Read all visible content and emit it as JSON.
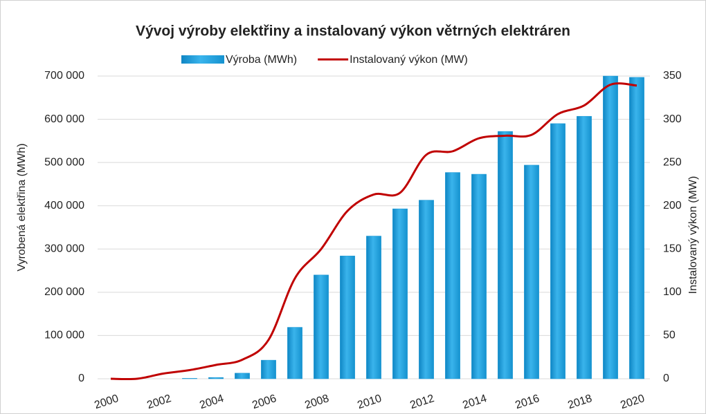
{
  "chart_data": {
    "type": "bar",
    "title": "Vývoj výroby elektřiny a instalovaný výkon větrných elektráren",
    "y_label": "Vyrobená elektřina (MWh)",
    "y2_label": "Instalovaný výkon (MW)",
    "categories": [
      "2000",
      null,
      "2002",
      null,
      "2004",
      null,
      "2006",
      null,
      "2008",
      null,
      "2010",
      null,
      "2012",
      null,
      "2014",
      null,
      "2016",
      null,
      "2018",
      null,
      "2020"
    ],
    "series": [
      {
        "name": "Výroba (MWh)",
        "type": "bar",
        "color": "#1e9bd7",
        "values": [
          0,
          0,
          0,
          1000,
          3000,
          13000,
          43000,
          119000,
          240000,
          284000,
          330000,
          393000,
          413000,
          477000,
          473000,
          572000,
          494000,
          590000,
          607000,
          700000,
          697000
        ]
      },
      {
        "name": "Instalovaný výkon (MW)",
        "type": "line",
        "axis": "y2",
        "color": "#c00000",
        "values": [
          0,
          0,
          6,
          10,
          16,
          22,
          45,
          116,
          150,
          194,
          213,
          215,
          259,
          263,
          278,
          281,
          282,
          306,
          316,
          340,
          339
        ]
      }
    ],
    "ylim": [
      0,
      700000
    ],
    "yticks": [
      0,
      {
        "value": 100000,
        "label": "100 000"
      },
      {
        "value": 200000,
        "label": "200 000"
      },
      {
        "value": 300000,
        "label": "300 000"
      },
      {
        "value": 400000,
        "label": "400 000"
      },
      {
        "value": 500000,
        "label": "500 000"
      },
      {
        "value": 600000,
        "label": "600 000"
      },
      {
        "value": 700000,
        "label": "700 000"
      }
    ],
    "y2lim": [
      0,
      350
    ],
    "y2ticks": [
      0,
      50,
      100,
      150,
      200,
      250,
      300,
      350
    ],
    "grid": true,
    "legend": "top"
  }
}
